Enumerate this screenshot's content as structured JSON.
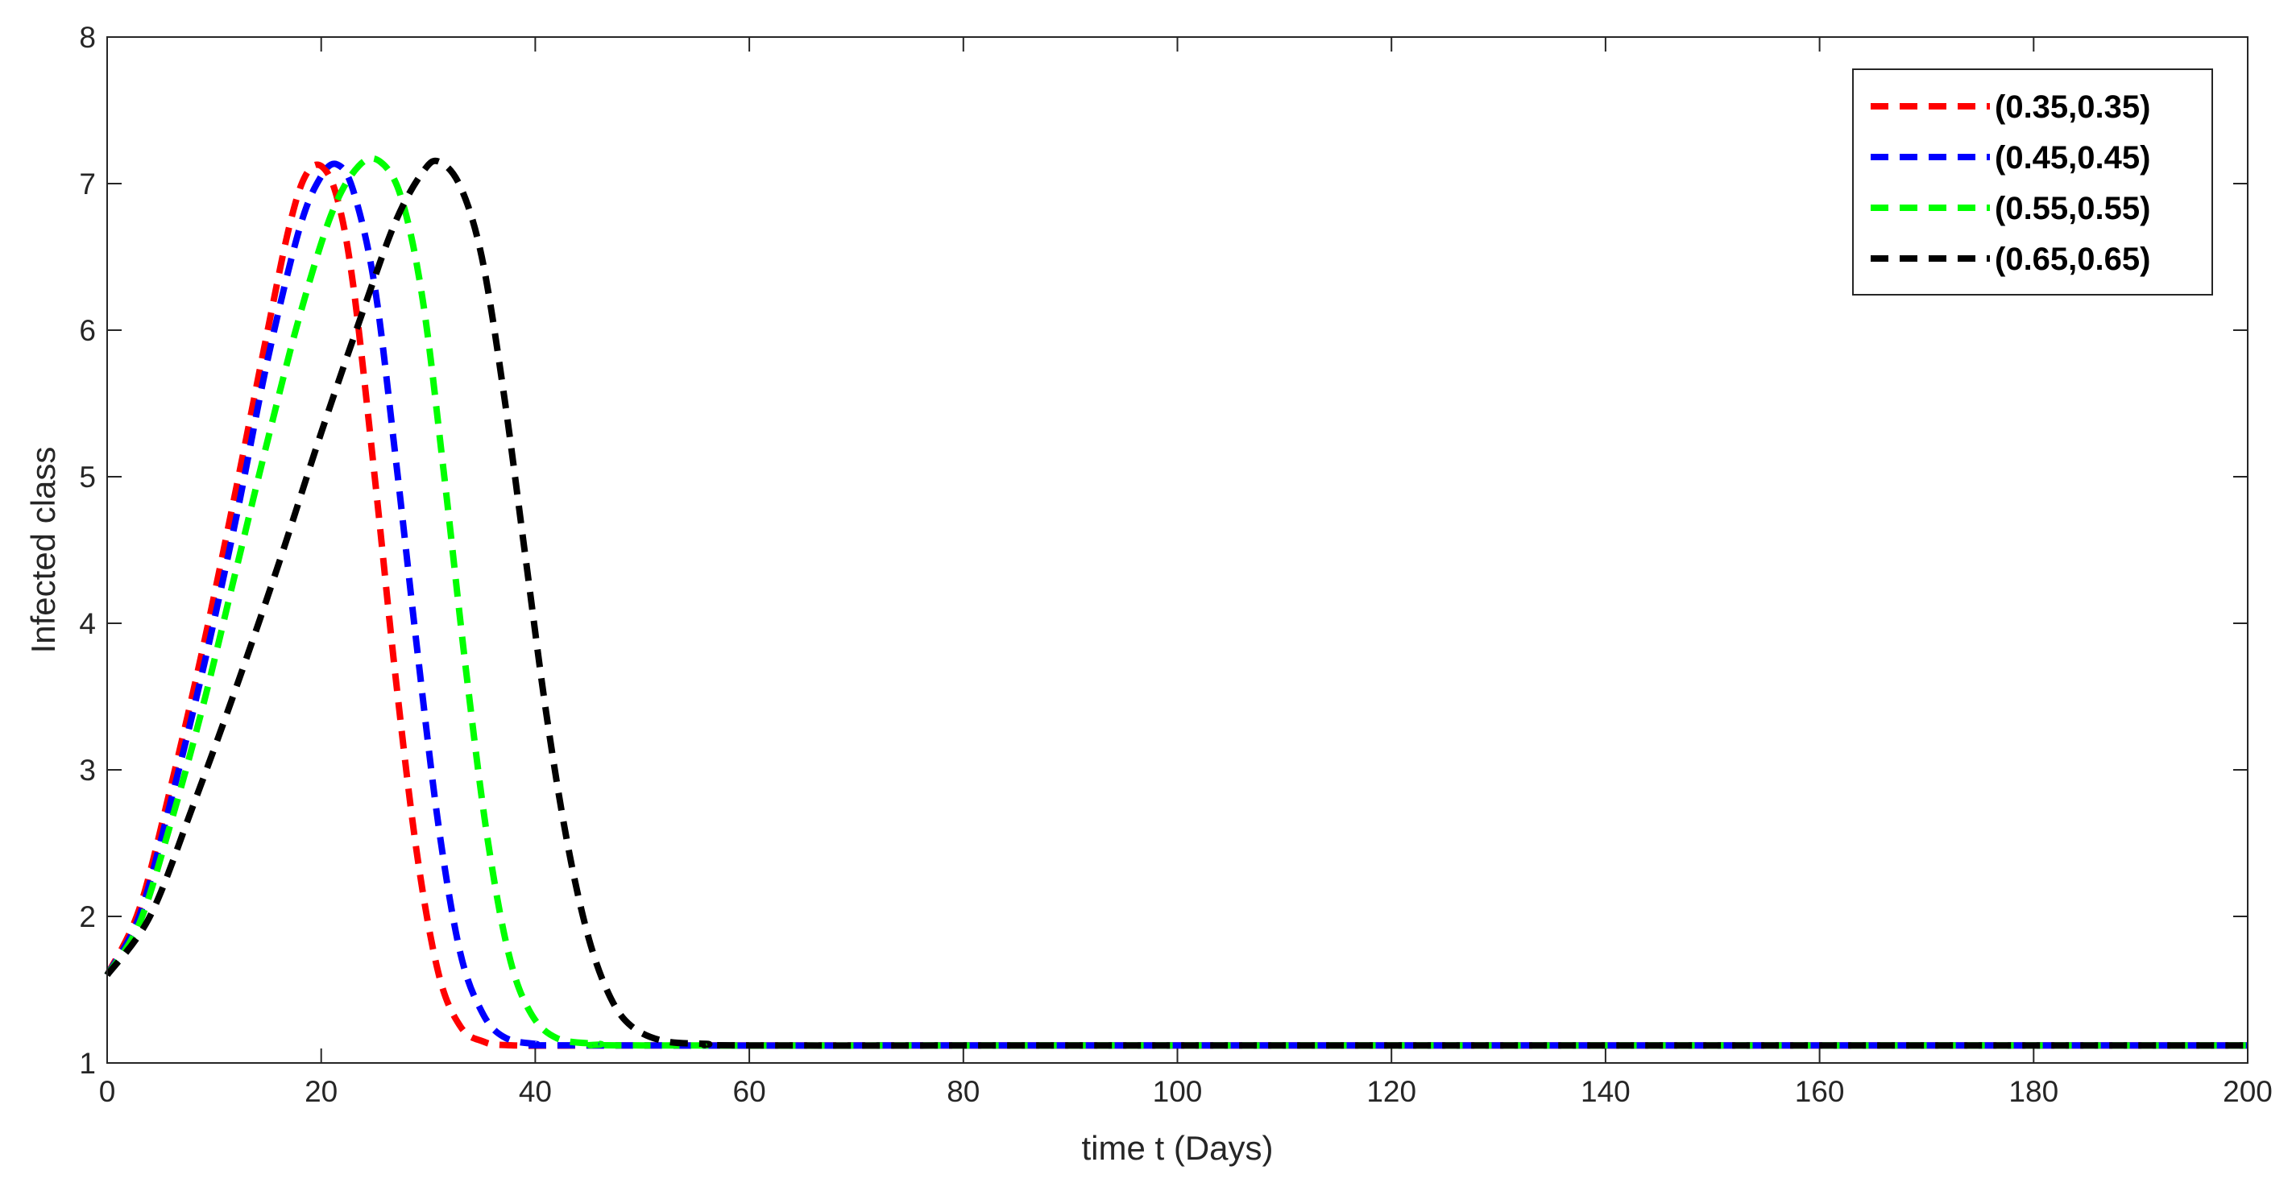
{
  "chart_data": {
    "type": "line",
    "xlabel": "time t (Days)",
    "ylabel": "Infected class",
    "xlim": [
      0,
      200
    ],
    "ylim": [
      1,
      8
    ],
    "xticks": [
      "0",
      "20",
      "40",
      "60",
      "80",
      "100",
      "120",
      "140",
      "160",
      "180",
      "200"
    ],
    "yticks": [
      "1",
      "2",
      "3",
      "4",
      "5",
      "6",
      "7",
      "8"
    ],
    "grid": false,
    "legend_position": "top-right",
    "line_style": "dashed",
    "series": [
      {
        "name": "(0.35,0.35)",
        "color": "#ff0000",
        "points": [
          [
            0,
            1.6
          ],
          [
            3,
            2.05
          ],
          [
            6,
            2.9
          ],
          [
            9,
            3.85
          ],
          [
            12,
            4.9
          ],
          [
            15,
            6.0
          ],
          [
            17,
            6.7
          ],
          [
            18.5,
            7.05
          ],
          [
            20,
            7.12
          ],
          [
            21.5,
            6.9
          ],
          [
            23,
            6.3
          ],
          [
            25,
            5.0
          ],
          [
            27,
            3.6
          ],
          [
            29,
            2.4
          ],
          [
            31,
            1.6
          ],
          [
            33,
            1.25
          ],
          [
            35,
            1.15
          ],
          [
            38,
            1.12
          ],
          [
            50,
            1.12
          ],
          [
            100,
            1.12
          ],
          [
            150,
            1.12
          ],
          [
            200,
            1.12
          ]
        ]
      },
      {
        "name": "(0.45,0.45)",
        "color": "#0000ff",
        "points": [
          [
            0,
            1.6
          ],
          [
            3,
            2.0
          ],
          [
            6,
            2.8
          ],
          [
            9,
            3.7
          ],
          [
            12,
            4.7
          ],
          [
            15,
            5.8
          ],
          [
            18,
            6.7
          ],
          [
            20,
            7.05
          ],
          [
            21.5,
            7.13
          ],
          [
            23,
            6.95
          ],
          [
            25,
            6.3
          ],
          [
            27,
            5.1
          ],
          [
            29,
            3.8
          ],
          [
            31,
            2.6
          ],
          [
            33,
            1.75
          ],
          [
            35,
            1.35
          ],
          [
            37,
            1.18
          ],
          [
            40,
            1.13
          ],
          [
            45,
            1.12
          ],
          [
            100,
            1.12
          ],
          [
            150,
            1.12
          ],
          [
            200,
            1.12
          ]
        ]
      },
      {
        "name": "(0.55,0.55)",
        "color": "#00ff00",
        "points": [
          [
            0,
            1.6
          ],
          [
            3,
            1.95
          ],
          [
            6,
            2.65
          ],
          [
            9,
            3.45
          ],
          [
            12,
            4.35
          ],
          [
            15,
            5.25
          ],
          [
            18,
            6.1
          ],
          [
            21,
            6.8
          ],
          [
            23.5,
            7.12
          ],
          [
            25.5,
            7.15
          ],
          [
            27.5,
            6.9
          ],
          [
            29.5,
            6.2
          ],
          [
            31.5,
            5.0
          ],
          [
            33.5,
            3.7
          ],
          [
            35.5,
            2.55
          ],
          [
            37.5,
            1.75
          ],
          [
            39.5,
            1.35
          ],
          [
            42,
            1.17
          ],
          [
            46,
            1.13
          ],
          [
            50,
            1.12
          ],
          [
            100,
            1.12
          ],
          [
            150,
            1.12
          ],
          [
            200,
            1.12
          ]
        ]
      },
      {
        "name": "(0.65,0.65)",
        "color": "#000000",
        "points": [
          [
            0,
            1.6
          ],
          [
            4,
            2.0
          ],
          [
            8,
            2.75
          ],
          [
            12,
            3.55
          ],
          [
            16,
            4.4
          ],
          [
            20,
            5.3
          ],
          [
            24,
            6.15
          ],
          [
            27,
            6.75
          ],
          [
            29.5,
            7.08
          ],
          [
            31,
            7.15
          ],
          [
            33,
            6.98
          ],
          [
            35,
            6.5
          ],
          [
            37,
            5.6
          ],
          [
            39,
            4.5
          ],
          [
            41,
            3.4
          ],
          [
            43,
            2.5
          ],
          [
            45,
            1.85
          ],
          [
            47,
            1.45
          ],
          [
            49,
            1.25
          ],
          [
            52,
            1.15
          ],
          [
            56,
            1.13
          ],
          [
            60,
            1.12
          ],
          [
            100,
            1.12
          ],
          [
            150,
            1.12
          ],
          [
            200,
            1.12
          ]
        ]
      }
    ]
  }
}
